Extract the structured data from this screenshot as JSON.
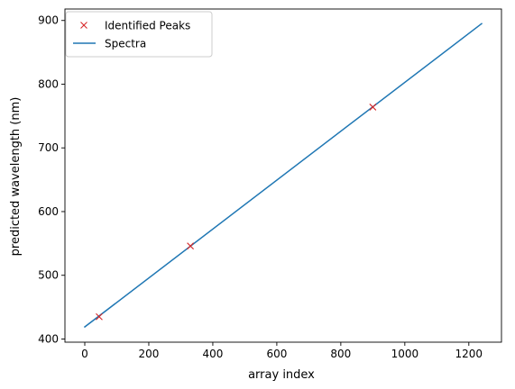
{
  "chart_data": {
    "type": "line",
    "title": "",
    "xlabel": "array index",
    "ylabel": "predicted wavelength (nm)",
    "xlim": [
      -62,
      1302
    ],
    "ylim": [
      395,
      918
    ],
    "xticks": [
      0,
      200,
      400,
      600,
      800,
      1000,
      1200
    ],
    "yticks": [
      400,
      500,
      600,
      700,
      800,
      900
    ],
    "grid": false,
    "legend_position": "top-left",
    "series": [
      {
        "name": "Spectra",
        "style": "line",
        "color": "#1f77b4",
        "x": [
          0,
          1240
        ],
        "y": [
          419,
          895
        ]
      },
      {
        "name": "Identified Peaks",
        "style": "marker-x",
        "color": "#d62728",
        "x": [
          45,
          330,
          900
        ],
        "y": [
          435,
          546,
          764
        ]
      }
    ],
    "legend": [
      "Identified Peaks",
      "Spectra"
    ]
  }
}
